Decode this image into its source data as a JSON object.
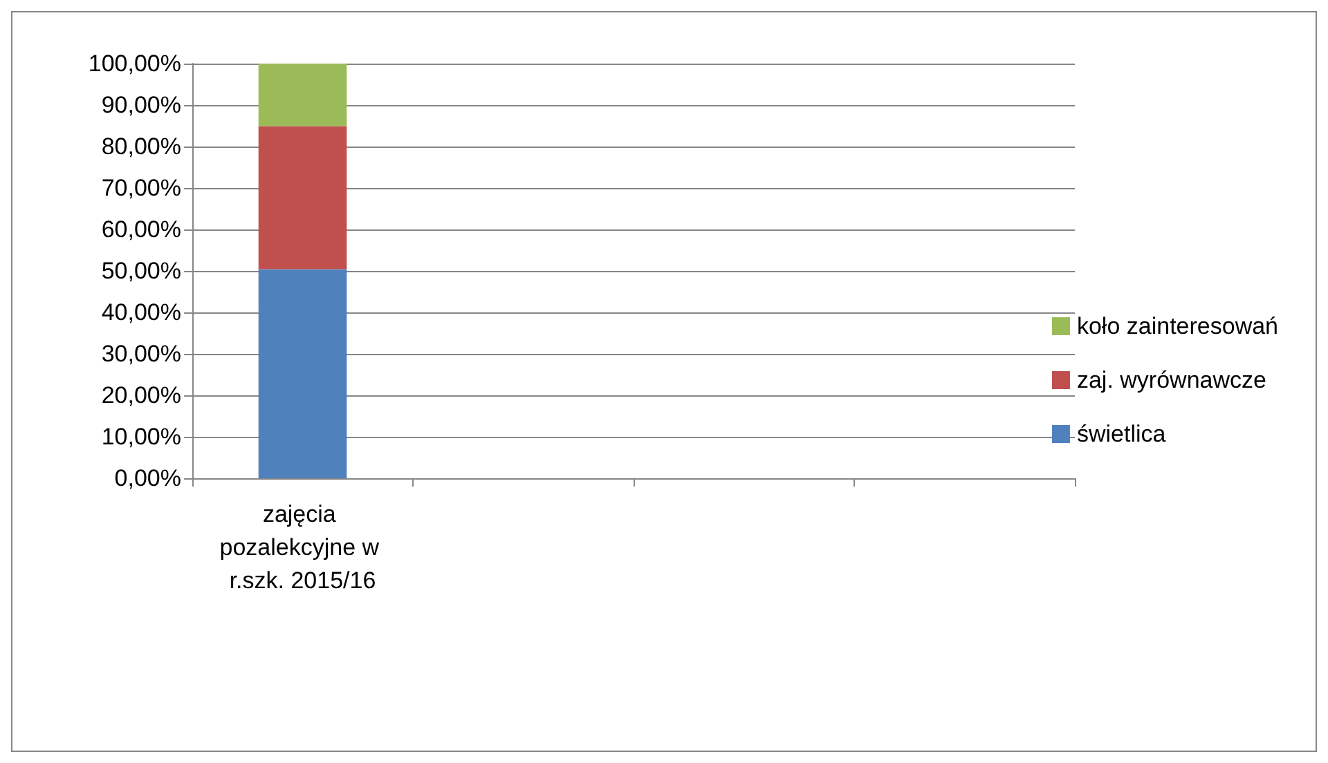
{
  "chart_data": {
    "type": "bar",
    "stacked": true,
    "categories": [
      "zajęcia pozalekcyjne w r.szk. 2015/16",
      null,
      null,
      null
    ],
    "series": [
      {
        "name": "świetlica",
        "color": "#4f81bd",
        "values": [
          50.4,
          null,
          null,
          null
        ]
      },
      {
        "name": "zaj. wyrównawcze",
        "color": "#c0504d",
        "values": [
          34.5,
          null,
          null,
          null
        ]
      },
      {
        "name": "koło zainteresowań",
        "color": "#9bbb59",
        "values": [
          15.1,
          null,
          null,
          null
        ]
      }
    ],
    "ylim": [
      0,
      100
    ],
    "yticks": [
      {
        "value": 0,
        "label": "0,00%"
      },
      {
        "value": 10,
        "label": "10,00%"
      },
      {
        "value": 20,
        "label": "20,00%"
      },
      {
        "value": 30,
        "label": "30,00%"
      },
      {
        "value": 40,
        "label": "40,00%"
      },
      {
        "value": 50,
        "label": "50,00%"
      },
      {
        "value": 60,
        "label": "60,00%"
      },
      {
        "value": 70,
        "label": "70,00%"
      },
      {
        "value": 80,
        "label": "80,00%"
      },
      {
        "value": 90,
        "label": "90,00%"
      },
      {
        "value": 100,
        "label": "100,00%"
      }
    ],
    "grid": "y",
    "legend": "right"
  }
}
